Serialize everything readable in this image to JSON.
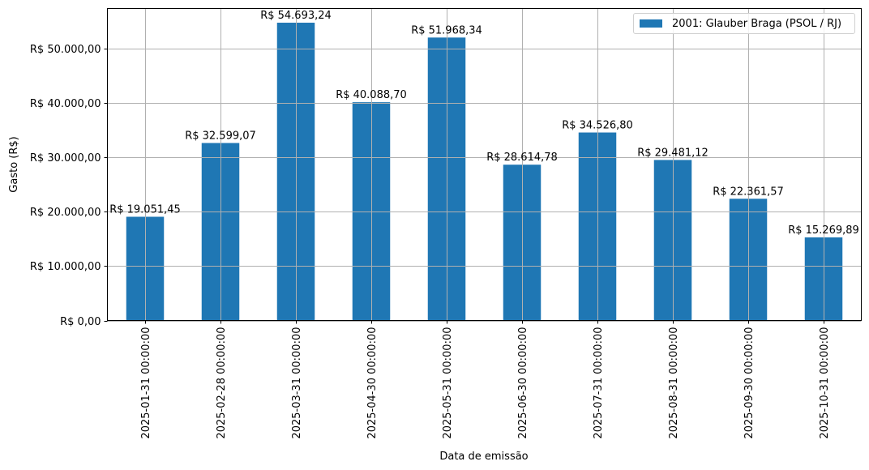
{
  "chart_data": {
    "type": "bar",
    "title": "",
    "xlabel": "Data de emissão",
    "ylabel": "Gasto (R$)",
    "categories": [
      "2025-01-31 00:00:00",
      "2025-02-28 00:00:00",
      "2025-03-31 00:00:00",
      "2025-04-30 00:00:00",
      "2025-05-31 00:00:00",
      "2025-06-30 00:00:00",
      "2025-07-31 00:00:00",
      "2025-08-31 00:00:00",
      "2025-09-30 00:00:00",
      "2025-10-31 00:00:00"
    ],
    "series": [
      {
        "name": "2001: Glauber Braga (PSOL / RJ)",
        "color": "#1f77b4",
        "values": [
          19051.45,
          32599.07,
          54693.24,
          40088.7,
          51968.34,
          28614.78,
          34526.8,
          29481.12,
          22361.57,
          15269.89
        ],
        "labels": [
          "R$ 19.051,45",
          "R$ 32.599,07",
          "R$ 54.693,24",
          "R$ 40.088,70",
          "R$ 51.968,34",
          "R$ 28.614,78",
          "R$ 34.526,80",
          "R$ 29.481,12",
          "R$ 22.361,57",
          "R$ 15.269,89"
        ]
      }
    ],
    "yticks": [
      0,
      10000,
      20000,
      30000,
      40000,
      50000
    ],
    "ytick_labels": [
      "R$ 0,00",
      "R$ 10.000,00",
      "R$ 20.000,00",
      "R$ 30.000,00",
      "R$ 40.000,00",
      "R$ 50.000,00"
    ],
    "ylim": [
      0,
      57300
    ],
    "grid": true,
    "legend_position": "upper right"
  },
  "legend": {
    "label": "2001: Glauber Braga (PSOL / RJ)",
    "color": "#1f77b4"
  }
}
